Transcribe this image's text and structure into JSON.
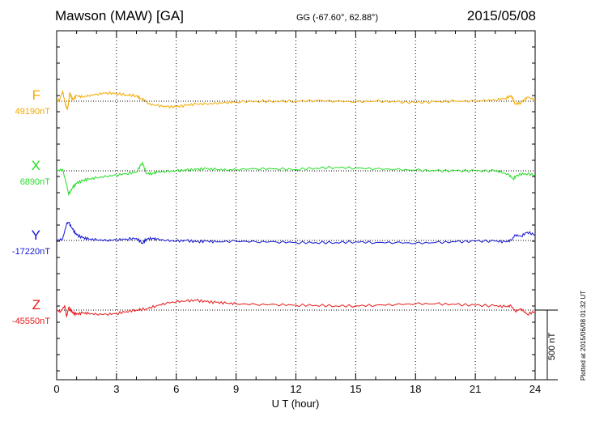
{
  "header": {
    "station": "Mawson (MAW)  [GA]",
    "coords": "GG (-67.60°,  62.88°)",
    "date": "2015/05/08"
  },
  "side_note": "Plotted at 2015/06/08 01:32 UT",
  "colors": {
    "F": "#f2a900",
    "X": "#22dd22",
    "Y": "#1414d4",
    "Z": "#e81818"
  },
  "chart_data": {
    "type": "line",
    "title": "Mawson (MAW)  [GA]",
    "xlabel": "U T (hour)",
    "xlim": [
      0,
      24
    ],
    "xticks": [
      "0",
      "3",
      "6",
      "9",
      "12",
      "15",
      "18",
      "21",
      "24"
    ],
    "scale_bar": {
      "label": "500 nT",
      "value": 500,
      "unit": "nT"
    },
    "series": [
      {
        "name": "F",
        "baseline_label": "49190nT",
        "baseline": 49190,
        "x": [
          0,
          0.15,
          0.3,
          0.45,
          0.55,
          0.65,
          0.8,
          1,
          1.3,
          1.6,
          2,
          2.5,
          3,
          3.5,
          4,
          4.2,
          4.4,
          4.6,
          5,
          5.5,
          6,
          6.5,
          7,
          7.5,
          8,
          8.5,
          9,
          10,
          11,
          12,
          13,
          14,
          15,
          16,
          17,
          18,
          19,
          20,
          21,
          21.5,
          22,
          22.5,
          22.8,
          23,
          23.3,
          23.6,
          24
        ],
        "y": [
          49190,
          49200,
          49260,
          49160,
          49130,
          49250,
          49200,
          49230,
          49220,
          49230,
          49240,
          49250,
          49245,
          49235,
          49230,
          49210,
          49200,
          49170,
          49160,
          49150,
          49150,
          49160,
          49170,
          49170,
          49175,
          49180,
          49185,
          49190,
          49190,
          49190,
          49195,
          49190,
          49185,
          49190,
          49185,
          49180,
          49185,
          49190,
          49190,
          49195,
          49200,
          49210,
          49230,
          49170,
          49180,
          49220,
          49200
        ]
      },
      {
        "name": "X",
        "baseline_label": "6890nT",
        "baseline": 6890,
        "x": [
          0,
          0.3,
          0.5,
          0.6,
          0.8,
          1,
          1.3,
          1.6,
          2,
          2.5,
          3,
          3.5,
          4,
          4.3,
          4.5,
          4.8,
          5,
          5.5,
          6,
          6.5,
          7,
          7.5,
          8,
          8.5,
          9,
          10,
          11,
          12,
          13,
          14,
          15,
          16,
          17,
          18,
          19,
          20,
          21,
          22,
          22.3,
          22.7,
          22.9,
          23.1,
          23.5,
          24
        ],
        "y": [
          6890,
          6900,
          6790,
          6720,
          6770,
          6800,
          6820,
          6830,
          6840,
          6850,
          6860,
          6870,
          6880,
          6950,
          6870,
          6870,
          6880,
          6885,
          6890,
          6895,
          6900,
          6905,
          6900,
          6895,
          6900,
          6905,
          6905,
          6900,
          6910,
          6915,
          6910,
          6905,
          6900,
          6895,
          6890,
          6890,
          6890,
          6890,
          6880,
          6860,
          6830,
          6860,
          6870,
          6860
        ]
      },
      {
        "name": "Y",
        "baseline_label": "-17220nT",
        "baseline": -17220,
        "x": [
          0,
          0.3,
          0.5,
          0.6,
          0.8,
          1,
          1.3,
          1.6,
          2,
          2.5,
          3,
          3.5,
          4,
          4.3,
          4.5,
          4.8,
          5,
          5.5,
          6,
          6.5,
          7,
          7.5,
          8,
          9,
          10,
          11,
          12,
          13,
          14,
          15,
          16,
          17,
          18,
          19,
          20,
          21,
          22,
          22.5,
          22.8,
          23,
          23.3,
          23.6,
          24
        ],
        "y": [
          -17220,
          -17210,
          -17100,
          -17090,
          -17140,
          -17180,
          -17200,
          -17210,
          -17215,
          -17220,
          -17215,
          -17210,
          -17205,
          -17240,
          -17210,
          -17205,
          -17210,
          -17220,
          -17225,
          -17220,
          -17230,
          -17225,
          -17230,
          -17225,
          -17230,
          -17230,
          -17235,
          -17235,
          -17235,
          -17230,
          -17235,
          -17235,
          -17240,
          -17235,
          -17230,
          -17225,
          -17225,
          -17230,
          -17220,
          -17180,
          -17190,
          -17160,
          -17180
        ]
      },
      {
        "name": "Z",
        "baseline_label": "-45550nT",
        "baseline": -45550,
        "x": [
          0,
          0.2,
          0.4,
          0.5,
          0.6,
          0.8,
          1,
          1.3,
          1.6,
          2,
          2.5,
          3,
          3.5,
          4,
          4.5,
          5,
          5.5,
          6,
          6.5,
          7,
          7.5,
          8,
          8.5,
          9,
          10,
          11,
          12,
          13,
          14,
          15,
          16,
          17,
          18,
          19,
          20,
          21,
          22,
          22.5,
          22.8,
          23,
          23.3,
          23.6,
          24
        ],
        "y": [
          -45550,
          -45560,
          -45520,
          -45600,
          -45530,
          -45570,
          -45580,
          -45570,
          -45575,
          -45580,
          -45580,
          -45575,
          -45560,
          -45550,
          -45540,
          -45520,
          -45500,
          -45490,
          -45485,
          -45480,
          -45490,
          -45495,
          -45500,
          -45505,
          -45510,
          -45510,
          -45515,
          -45515,
          -45520,
          -45520,
          -45515,
          -45510,
          -45505,
          -45505,
          -45510,
          -45515,
          -45520,
          -45525,
          -45520,
          -45560,
          -45540,
          -45580,
          -45560
        ]
      }
    ]
  }
}
